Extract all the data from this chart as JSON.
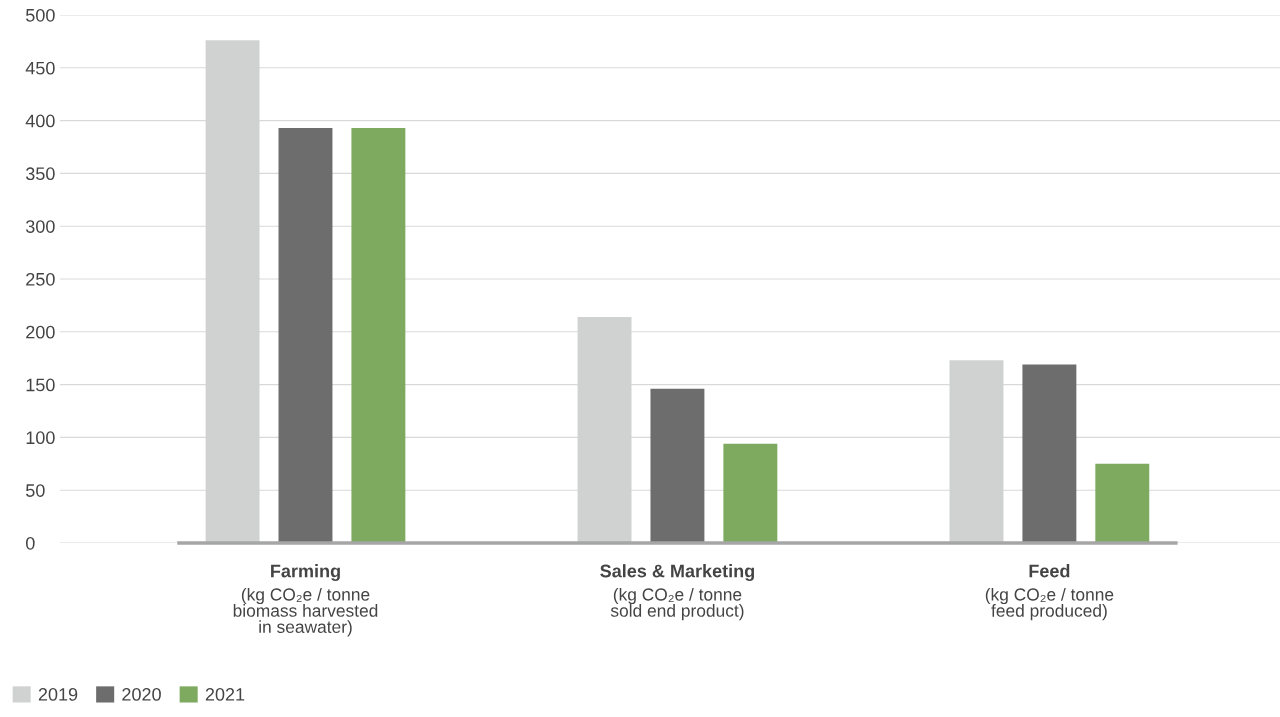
{
  "chart_data": {
    "type": "bar",
    "categories": [
      "Farming\n(kg CO₂e / tonne\nbiomass harvested\nin seawater)",
      "Sales & Marketing\n(kg CO₂e / tonne\nsold end product)",
      "Feed\n(kg CO₂e / tonne\nfeed produced)"
    ],
    "series": [
      {
        "name": "2019",
        "color": "#d0d2d1",
        "values": [
          476,
          214,
          173
        ]
      },
      {
        "name": "2020",
        "color": "#6d6d6d",
        "values": [
          393,
          146,
          169
        ]
      },
      {
        "name": "2021",
        "color": "#7daa5f",
        "values": [
          393,
          94,
          75
        ]
      }
    ],
    "ylim": [
      0,
      500
    ],
    "yticks": [
      0,
      50,
      100,
      150,
      200,
      250,
      300,
      350,
      400,
      450,
      500
    ],
    "grid": "y",
    "legend": "bottom left"
  }
}
